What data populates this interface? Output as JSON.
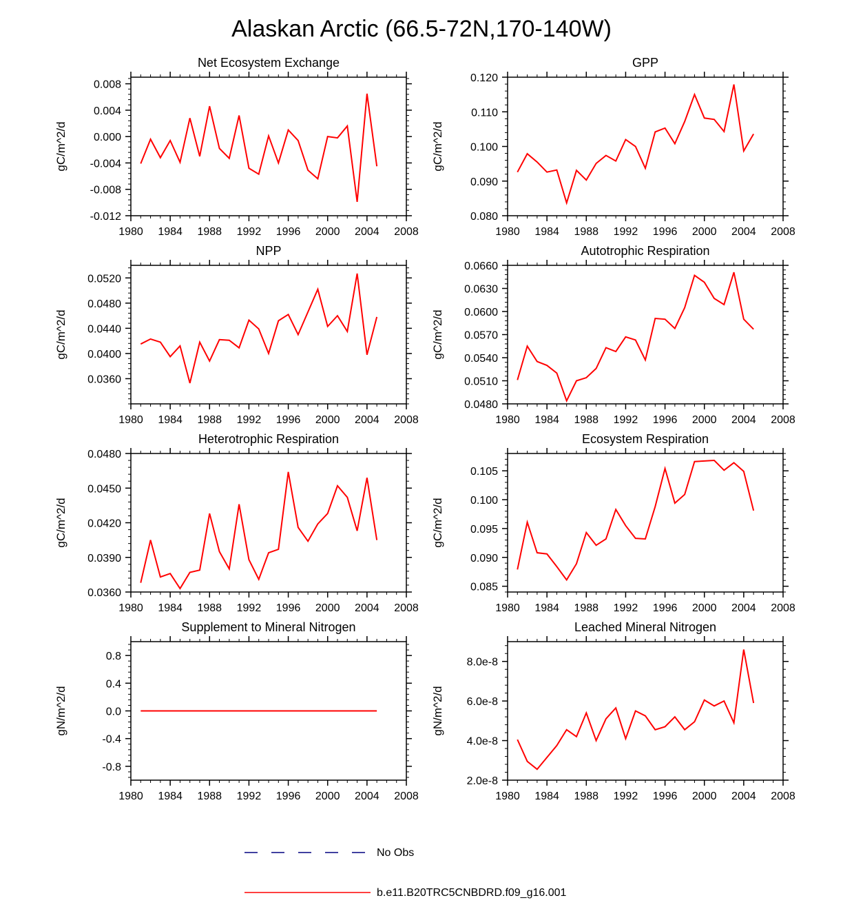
{
  "page_title": "Alaskan Arctic (66.5-72N,170-140W)",
  "colors": {
    "model": "#ff0000",
    "obs": "#000080",
    "axis": "#000000"
  },
  "legend": [
    {
      "label": "No Obs",
      "style": "dashed",
      "color": "#000080"
    },
    {
      "label": "b.e11.B20TRC5CNBDRD.f09_g16.001",
      "style": "solid",
      "color": "#ff0000"
    }
  ],
  "chart_data": [
    {
      "type": "line",
      "title": "Net Ecosystem Exchange",
      "ylabel": "gC/m^2/d",
      "xlim": [
        1980,
        2008
      ],
      "xticks": [
        1980,
        1984,
        1988,
        1992,
        1996,
        2000,
        2004,
        2008
      ],
      "xtick_labels": [
        "1980",
        "1984",
        "1988",
        "1992",
        "1996",
        "2000",
        "2004",
        "2008"
      ],
      "ylim": [
        -0.012,
        0.009
      ],
      "yticks": [
        -0.012,
        -0.008,
        -0.004,
        0.0,
        0.004,
        0.008
      ],
      "ytick_labels": [
        "-0.012",
        "-0.008",
        "-0.004",
        "0.000",
        "0.004",
        "0.008"
      ],
      "x": [
        1981,
        1982,
        1983,
        1984,
        1985,
        1986,
        1987,
        1988,
        1989,
        1990,
        1991,
        1992,
        1993,
        1994,
        1995,
        1996,
        1997,
        1998,
        1999,
        2000,
        2001,
        2002,
        2003,
        2004,
        2005
      ],
      "series": [
        {
          "name": "b.e11.B20TRC5CNBDRD.f09_g16.001",
          "values": [
            -0.0041,
            -0.0004,
            -0.0032,
            -0.0006,
            -0.0039,
            0.0028,
            -0.003,
            0.0046,
            -0.0018,
            -0.0033,
            0.0032,
            -0.0048,
            -0.0057,
            0.0001,
            -0.004,
            0.001,
            -0.0006,
            -0.0051,
            -0.0064,
            0.0,
            -0.0002,
            0.0016,
            -0.0099,
            0.0065,
            -0.0045
          ]
        }
      ]
    },
    {
      "type": "line",
      "title": "GPP",
      "ylabel": "gC/m^2/d",
      "xlim": [
        1980,
        2008
      ],
      "xticks": [
        1980,
        1984,
        1988,
        1992,
        1996,
        2000,
        2004,
        2008
      ],
      "xtick_labels": [
        "1980",
        "1984",
        "1988",
        "1992",
        "1996",
        "2000",
        "2004",
        "2008"
      ],
      "ylim": [
        0.08,
        0.12
      ],
      "yticks": [
        0.08,
        0.09,
        0.1,
        0.11,
        0.12
      ],
      "ytick_labels": [
        "0.080",
        "0.090",
        "0.100",
        "0.110",
        "0.120"
      ],
      "x": [
        1981,
        1982,
        1983,
        1984,
        1985,
        1986,
        1987,
        1988,
        1989,
        1990,
        1991,
        1992,
        1993,
        1994,
        1995,
        1996,
        1997,
        1998,
        1999,
        2000,
        2001,
        2002,
        2003,
        2004,
        2005
      ],
      "series": [
        {
          "name": "b.e11.B20TRC5CNBDRD.f09_g16.001",
          "values": [
            0.0926,
            0.0979,
            0.0955,
            0.0926,
            0.0932,
            0.0837,
            0.0931,
            0.0903,
            0.0951,
            0.0974,
            0.0958,
            0.102,
            0.1,
            0.0937,
            0.1042,
            0.1053,
            0.1008,
            0.1072,
            0.115,
            0.1082,
            0.1078,
            0.1043,
            0.1179,
            0.0987,
            0.1036
          ]
        }
      ]
    },
    {
      "type": "line",
      "title": "NPP",
      "ylabel": "gC/m^2/d",
      "xlim": [
        1980,
        2008
      ],
      "xticks": [
        1980,
        1984,
        1988,
        1992,
        1996,
        2000,
        2004,
        2008
      ],
      "xtick_labels": [
        "1980",
        "1984",
        "1988",
        "1992",
        "1996",
        "2000",
        "2004",
        "2008"
      ],
      "ylim": [
        0.032,
        0.054
      ],
      "yticks": [
        0.036,
        0.04,
        0.044,
        0.048,
        0.052
      ],
      "ytick_labels": [
        "0.0360",
        "0.0400",
        "0.0440",
        "0.0480",
        "0.0520"
      ],
      "x": [
        1981,
        1982,
        1983,
        1984,
        1985,
        1986,
        1987,
        1988,
        1989,
        1990,
        1991,
        1992,
        1993,
        1994,
        1995,
        1996,
        1997,
        1998,
        1999,
        2000,
        2001,
        2002,
        2003,
        2004,
        2005
      ],
      "series": [
        {
          "name": "b.e11.B20TRC5CNBDRD.f09_g16.001",
          "values": [
            0.0415,
            0.0423,
            0.0418,
            0.0395,
            0.0412,
            0.0353,
            0.0418,
            0.0388,
            0.0422,
            0.0421,
            0.0409,
            0.0453,
            0.0439,
            0.04,
            0.0452,
            0.0462,
            0.043,
            0.0466,
            0.0502,
            0.0443,
            0.046,
            0.0435,
            0.0527,
            0.0398,
            0.0458
          ]
        }
      ]
    },
    {
      "type": "line",
      "title": "Autotrophic Respiration",
      "ylabel": "gC/m^2/d",
      "xlim": [
        1980,
        2008
      ],
      "xticks": [
        1980,
        1984,
        1988,
        1992,
        1996,
        2000,
        2004,
        2008
      ],
      "xtick_labels": [
        "1980",
        "1984",
        "1988",
        "1992",
        "1996",
        "2000",
        "2004",
        "2008"
      ],
      "ylim": [
        0.048,
        0.066
      ],
      "yticks": [
        0.048,
        0.051,
        0.054,
        0.057,
        0.06,
        0.063,
        0.066
      ],
      "ytick_labels": [
        "0.0480",
        "0.0510",
        "0.0540",
        "0.0570",
        "0.0600",
        "0.0630",
        "0.0660"
      ],
      "x": [
        1981,
        1982,
        1983,
        1984,
        1985,
        1986,
        1987,
        1988,
        1989,
        1990,
        1991,
        1992,
        1993,
        1994,
        1995,
        1996,
        1997,
        1998,
        1999,
        2000,
        2001,
        2002,
        2003,
        2004,
        2005
      ],
      "series": [
        {
          "name": "b.e11.B20TRC5CNBDRD.f09_g16.001",
          "values": [
            0.0511,
            0.0555,
            0.0535,
            0.053,
            0.052,
            0.0484,
            0.051,
            0.0514,
            0.0526,
            0.0553,
            0.0548,
            0.0567,
            0.0563,
            0.0537,
            0.0591,
            0.059,
            0.0578,
            0.0605,
            0.0647,
            0.0638,
            0.0617,
            0.0609,
            0.0651,
            0.059,
            0.0577
          ]
        }
      ]
    },
    {
      "type": "line",
      "title": "Heterotrophic Respiration",
      "ylabel": "gC/m^2/d",
      "xlim": [
        1980,
        2008
      ],
      "xticks": [
        1980,
        1984,
        1988,
        1992,
        1996,
        2000,
        2004,
        2008
      ],
      "xtick_labels": [
        "1980",
        "1984",
        "1988",
        "1992",
        "1996",
        "2000",
        "2004",
        "2008"
      ],
      "ylim": [
        0.036,
        0.048
      ],
      "yticks": [
        0.036,
        0.039,
        0.042,
        0.045,
        0.048
      ],
      "ytick_labels": [
        "0.0360",
        "0.0390",
        "0.0420",
        "0.0450",
        "0.0480"
      ],
      "x": [
        1981,
        1982,
        1983,
        1984,
        1985,
        1986,
        1987,
        1988,
        1989,
        1990,
        1991,
        1992,
        1993,
        1994,
        1995,
        1996,
        1997,
        1998,
        1999,
        2000,
        2001,
        2002,
        2003,
        2004,
        2005
      ],
      "series": [
        {
          "name": "b.e11.B20TRC5CNBDRD.f09_g16.001",
          "values": [
            0.0368,
            0.0405,
            0.0373,
            0.0376,
            0.0363,
            0.0377,
            0.0379,
            0.0428,
            0.0395,
            0.038,
            0.0436,
            0.0388,
            0.0371,
            0.0394,
            0.0397,
            0.0464,
            0.0416,
            0.0404,
            0.0419,
            0.0428,
            0.0452,
            0.0442,
            0.0413,
            0.0459,
            0.0405
          ]
        }
      ]
    },
    {
      "type": "line",
      "title": "Ecosystem Respiration",
      "ylabel": "gC/m^2/d",
      "xlim": [
        1980,
        2008
      ],
      "xticks": [
        1980,
        1984,
        1988,
        1992,
        1996,
        2000,
        2004,
        2008
      ],
      "xtick_labels": [
        "1980",
        "1984",
        "1988",
        "1992",
        "1996",
        "2000",
        "2004",
        "2008"
      ],
      "ylim": [
        0.084,
        0.108
      ],
      "yticks": [
        0.085,
        0.09,
        0.095,
        0.1,
        0.105
      ],
      "ytick_labels": [
        "0.085",
        "0.090",
        "0.095",
        "0.100",
        "0.105"
      ],
      "x": [
        1981,
        1982,
        1983,
        1984,
        1985,
        1986,
        1987,
        1988,
        1989,
        1990,
        1991,
        1992,
        1993,
        1994,
        1995,
        1996,
        1997,
        1998,
        1999,
        2000,
        2001,
        2002,
        2003,
        2004,
        2005
      ],
      "series": [
        {
          "name": "b.e11.B20TRC5CNBDRD.f09_g16.001",
          "values": [
            0.0879,
            0.0961,
            0.0908,
            0.0906,
            0.0884,
            0.0861,
            0.0889,
            0.0943,
            0.0921,
            0.0932,
            0.0983,
            0.0955,
            0.0933,
            0.0932,
            0.0988,
            0.1054,
            0.0994,
            0.1009,
            0.1066,
            0.1067,
            0.1068,
            0.1051,
            0.1064,
            0.1049,
            0.0981
          ]
        }
      ]
    },
    {
      "type": "line",
      "title": "Supplement to Mineral Nitrogen",
      "ylabel": "gN/m^2/d",
      "xlim": [
        1980,
        2008
      ],
      "xticks": [
        1980,
        1984,
        1988,
        1992,
        1996,
        2000,
        2004,
        2008
      ],
      "xtick_labels": [
        "1980",
        "1984",
        "1988",
        "1992",
        "1996",
        "2000",
        "2004",
        "2008"
      ],
      "ylim": [
        -1.0,
        1.0
      ],
      "yticks": [
        -0.8,
        -0.4,
        0.0,
        0.4,
        0.8
      ],
      "ytick_labels": [
        "-0.8",
        "-0.4",
        "0.0",
        "0.4",
        "0.8"
      ],
      "x": [
        1981,
        1982,
        1983,
        1984,
        1985,
        1986,
        1987,
        1988,
        1989,
        1990,
        1991,
        1992,
        1993,
        1994,
        1995,
        1996,
        1997,
        1998,
        1999,
        2000,
        2001,
        2002,
        2003,
        2004,
        2005
      ],
      "series": [
        {
          "name": "b.e11.B20TRC5CNBDRD.f09_g16.001",
          "values": [
            0,
            0,
            0,
            0,
            0,
            0,
            0,
            0,
            0,
            0,
            0,
            0,
            0,
            0,
            0,
            0,
            0,
            0,
            0,
            0,
            0,
            0,
            0,
            0,
            0
          ]
        }
      ]
    },
    {
      "type": "line",
      "title": "Leached Mineral Nitrogen",
      "ylabel": "gN/m^2/d",
      "xlim": [
        1980,
        2008
      ],
      "xticks": [
        1980,
        1984,
        1988,
        1992,
        1996,
        2000,
        2004,
        2008
      ],
      "xtick_labels": [
        "1980",
        "1984",
        "1988",
        "1992",
        "1996",
        "2000",
        "2004",
        "2008"
      ],
      "ylim": [
        2e-08,
        9e-08
      ],
      "yticks": [
        2e-08,
        4e-08,
        6e-08,
        8e-08
      ],
      "ytick_labels": [
        "2.0e-8",
        "4.0e-8",
        "6.0e-8",
        "8.0e-8"
      ],
      "x": [
        1981,
        1982,
        1983,
        1984,
        1985,
        1986,
        1987,
        1988,
        1989,
        1990,
        1991,
        1992,
        1993,
        1994,
        1995,
        1996,
        1997,
        1998,
        1999,
        2000,
        2001,
        2002,
        2003,
        2004,
        2005
      ],
      "series": [
        {
          "name": "b.e11.B20TRC5CNBDRD.f09_g16.001",
          "values": [
            4.05e-08,
            2.95e-08,
            2.55e-08,
            3.15e-08,
            3.75e-08,
            4.55e-08,
            4.2e-08,
            5.4e-08,
            4e-08,
            5.1e-08,
            5.65e-08,
            4.1e-08,
            5.5e-08,
            5.25e-08,
            4.55e-08,
            4.7e-08,
            5.2e-08,
            4.55e-08,
            4.95e-08,
            6.05e-08,
            5.75e-08,
            6e-08,
            4.9e-08,
            8.6e-08,
            5.9e-08
          ]
        }
      ]
    }
  ]
}
